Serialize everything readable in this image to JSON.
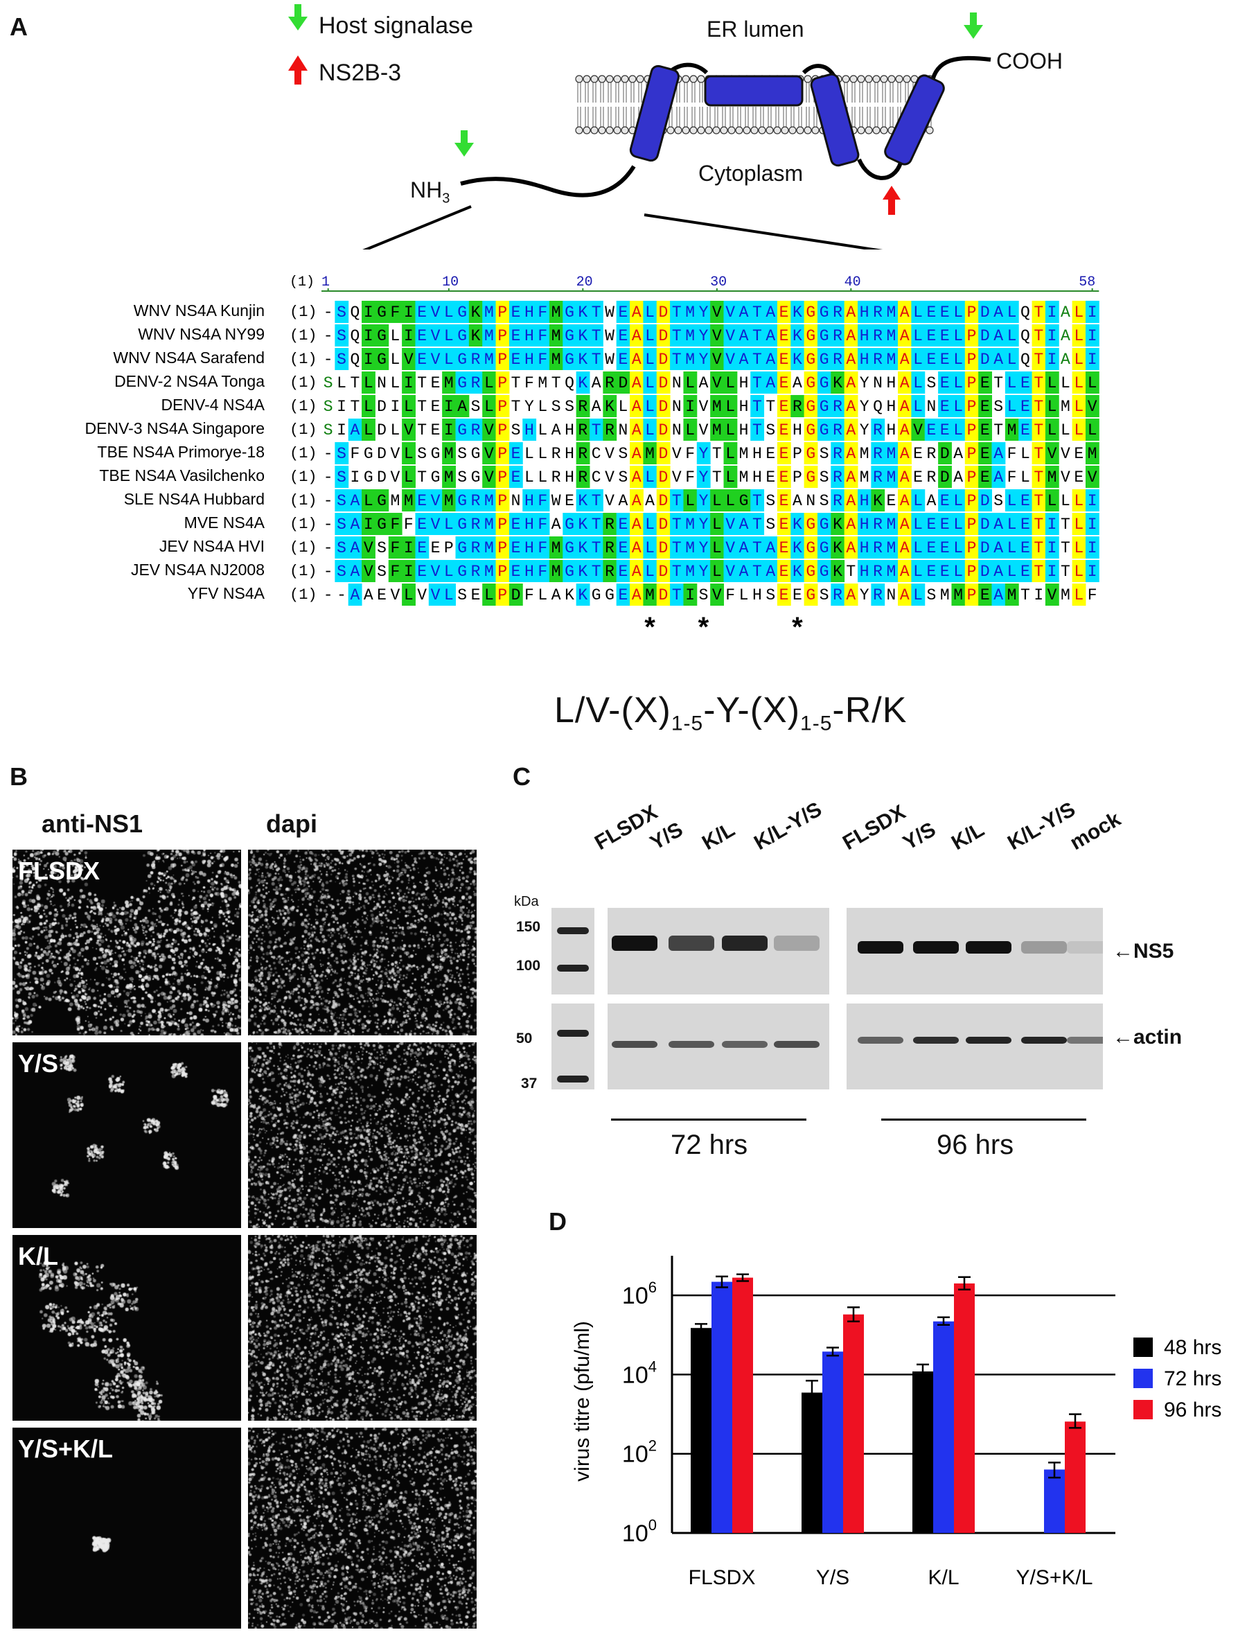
{
  "panel_a": {
    "label": "A",
    "legend_host": "Host signalase",
    "legend_ns2b3": "NS2B-3",
    "er_lumen": "ER lumen",
    "cytoplasm": "Cytoplasm",
    "cooh": "COOH",
    "nh3": "NH",
    "nh3_sub": "3",
    "colors": {
      "green_arrow": "#33dd33",
      "red_arrow": "#ee1111",
      "helix": "#3333cc",
      "membrane_head": "#e0e0e0"
    },
    "ruler": {
      "prefix": "(1)",
      "ticks": [
        "1",
        "10",
        "20",
        "30",
        "40",
        "58"
      ]
    },
    "names": [
      "WNV NS4A Kunjin",
      "WNV NS4A NY99",
      "WNV NS4A Sarafend",
      "DENV-2 NS4A Tonga",
      "DENV-4 NS4A",
      "DENV-3 NS4A Singapore",
      "TBE NS4A Primorye-18",
      "TBE NS4A Vasilchenko",
      "SLE NS4A Hubbard",
      "MVE NS4A",
      "JEV NS4A HVI",
      "JEV NS4A NJ2008",
      "YFV NS4A"
    ],
    "prefix": "(1)",
    "sequences": [
      "-SQIGFIEVLGKMPEHFMGKTWEALDTMYVVATAEKGGRAHRMALEELPDALQTIALI",
      "-SQIGLIEVLGKMPEHFMGKTWEALDTMYVVATAEKGGRAHRMALEELPDALQTIALI",
      "-SQIGLVEVLGRMPEHFMGKTWEALDTMYVVATAEKGGRAHRMALEELPDALQTIALI",
      "SLTLNLITEMGRLPTFMTQKARDALDNLAVLHTAEAGGKAYNHALSELPETLETLLLL",
      "SITLDILTEIASLPTYLSSRAKLALDNIVMLHTTERGGRAYQHALNELPESLETLMLV",
      "SIALDLVTEIGRVPSHLAHRTRNALDNLVMLHTSEHGGRAYRHAVEELPETMETLLLL",
      "-SFGDVLSGMSGVPELLRHRCVSAMDVFYTLMHEEPGSRAMRMAERDAPEAFLTVVEM",
      "-SIGDVLTGMSGVPELLRHRCVSALDVFYTLMHEEPGSRAMRMAERDAPEAFLTMVEV",
      "-SALGMMEVMGRMPNHFWEKTVAAADTLYLLGTSEANSRAHKEALAELPDSLETLLLI",
      "-SAIGFFEVLGRMPEHFAGKTREALDTMYLVATSEKGGKAHRMALEELPDALETITLI",
      "-SAVSFIEEPGRMPEHFMGKTREALDTMYLVATAEKGGKAHRMALEELPDALETITLI",
      "-SAVSFIEVLGRMPEHFMGKTREALDTMYLVATAEKGGKTHRMALEELPDALETITLI",
      "--AAEVLVVLSELPDFLAKKGGEAMDTISVFLHSEEGSRAYRNALSMMPEAMTIVMLF"
    ],
    "asterisks": [
      "*",
      "*",
      "*"
    ],
    "motif": {
      "a": "L/V-(X)",
      "s1": "1-5",
      "b": "-Y-(X)",
      "s2": "1-5",
      "c": "-R/K"
    },
    "aa_colors": {
      "cyan": "#00e0ff",
      "green": "#20d020",
      "yellow": "#ffff00",
      "blue_text": "#1020d0",
      "green_text": "#108010",
      "red_text": "#e01010"
    }
  },
  "panel_b": {
    "label": "B",
    "col1": "anti-NS1",
    "col2": "dapi",
    "rows": [
      "FLSDX",
      "Y/S",
      "K/L",
      "Y/S+K/L"
    ]
  },
  "panel_c": {
    "label": "C",
    "lanes_72": [
      "FLSDX",
      "Y/S",
      "K/L",
      "K/L-Y/S"
    ],
    "lanes_96": [
      "FLSDX",
      "Y/S",
      "K/L",
      "K/L-Y/S",
      "mock"
    ],
    "kda": "kDa",
    "markers": [
      "150",
      "100",
      "50",
      "37"
    ],
    "ns5": "NS5",
    "actin": "actin",
    "t72": "72 hrs",
    "t96": "96 hrs",
    "ns5_intensity_72": [
      1.0,
      0.75,
      0.9,
      0.25
    ],
    "ns5_intensity_96": [
      1.0,
      1.0,
      1.0,
      0.3,
      0.1
    ],
    "actin_intensity_72": [
      0.7,
      0.65,
      0.6,
      0.7
    ],
    "actin_intensity_96": [
      0.6,
      0.85,
      0.9,
      0.9,
      0.5
    ]
  },
  "panel_d": {
    "label": "D",
    "chart_data": {
      "type": "bar",
      "categories": [
        "FLSDX",
        "Y/S",
        "K/L",
        "Y/S+K/L"
      ],
      "series": [
        {
          "name": "48 hrs",
          "color": "#000000",
          "values": [
            150000,
            3500,
            12000,
            null
          ],
          "err_low": [
            120000,
            1800,
            9000,
            null
          ],
          "err_high": [
            190000,
            7000,
            18000,
            null
          ]
        },
        {
          "name": "72 hrs",
          "color": "#2233ee",
          "values": [
            2200000,
            38000,
            220000,
            40
          ],
          "err_low": [
            1600000,
            30000,
            180000,
            25
          ],
          "err_high": [
            3000000,
            48000,
            280000,
            60
          ]
        },
        {
          "name": "96 hrs",
          "color": "#ee1122",
          "values": [
            2800000,
            330000,
            2000000,
            650
          ],
          "err_low": [
            2300000,
            220000,
            1400000,
            450
          ],
          "err_high": [
            3400000,
            500000,
            2900000,
            1000
          ]
        }
      ],
      "ylabel": "virus titre (pfu/ml)",
      "yscale": "log",
      "ylim": [
        1,
        10000000
      ],
      "yticks": [
        {
          "base": "10",
          "exp": "0"
        },
        {
          "base": "10",
          "exp": "2"
        },
        {
          "base": "10",
          "exp": "4"
        },
        {
          "base": "10",
          "exp": "6"
        }
      ],
      "grid": "horizontal at 10^2, 10^4, 10^6",
      "legend_position": "right"
    }
  }
}
